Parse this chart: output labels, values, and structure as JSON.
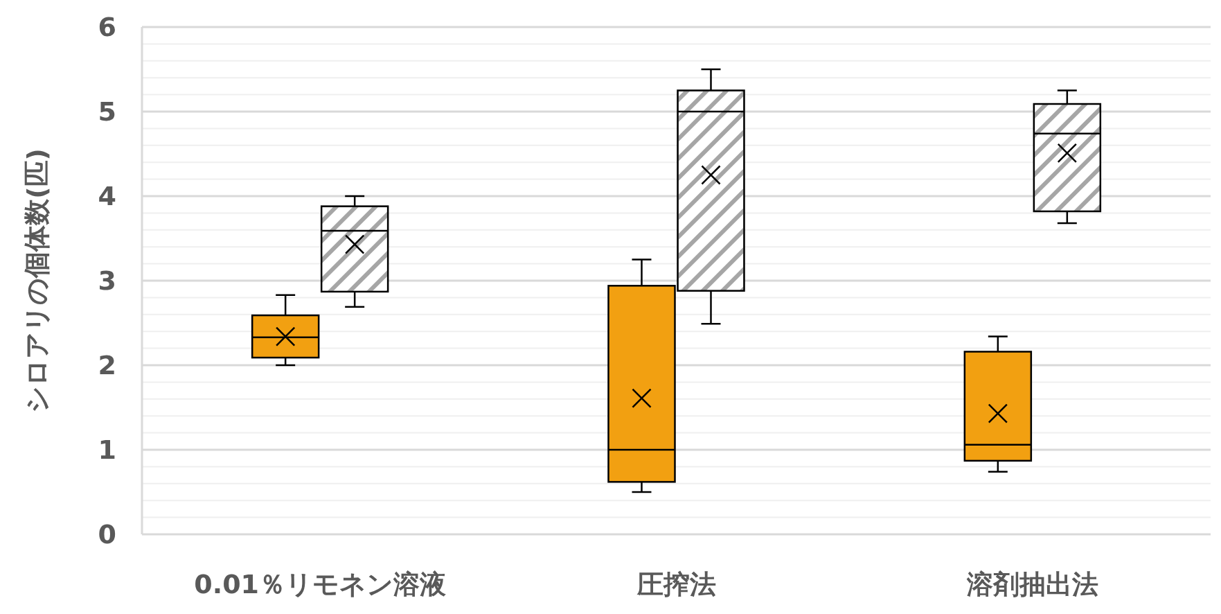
{
  "chart_data": {
    "type": "box",
    "ylabel": "シロアリの個体数(匹)",
    "categories": [
      "0.01％リモネン溶液",
      "圧搾法",
      "溶剤抽出法"
    ],
    "ylim": [
      0,
      6
    ],
    "yticks": [
      0,
      {
        "value": 0.2,
        "label": null
      },
      {
        "value": 0.4,
        "label": null
      },
      {
        "value": 0.6,
        "label": null
      },
      {
        "value": 0.8,
        "label": null
      },
      1,
      {
        "value": 1.2,
        "label": null
      },
      {
        "value": 1.4,
        "label": null
      },
      {
        "value": 1.6,
        "label": null
      },
      {
        "value": 1.8,
        "label": null
      },
      2,
      {
        "value": 2.2,
        "label": null
      },
      {
        "value": 2.4,
        "label": null
      },
      {
        "value": 2.6,
        "label": null
      },
      {
        "value": 2.8,
        "label": null
      },
      3,
      {
        "value": 3.2,
        "label": null
      },
      {
        "value": 3.4,
        "label": null
      },
      {
        "value": 3.6,
        "label": null
      },
      {
        "value": 3.8,
        "label": null
      },
      4,
      {
        "value": 4.2,
        "label": null
      },
      {
        "value": 4.4,
        "label": null
      },
      {
        "value": 4.6,
        "label": null
      },
      {
        "value": 4.8,
        "label": null
      },
      5,
      {
        "value": 5.2,
        "label": null
      },
      {
        "value": 5.4,
        "label": null
      },
      {
        "value": 5.6,
        "label": null
      },
      {
        "value": 5.8,
        "label": null
      },
      6
    ],
    "grid": true,
    "series": [
      {
        "color": "#f2a011",
        "boxes": [
          {
            "low": 2.0,
            "q1": 2.09,
            "median": 2.33,
            "q3": 2.59,
            "high": 2.83,
            "mean": 2.34
          },
          {
            "low": 0.5,
            "q1": 0.62,
            "median": 1.0,
            "q3": 2.94,
            "high": 3.25,
            "mean": 1.61
          },
          {
            "low": 0.74,
            "q1": 0.87,
            "median": 1.06,
            "q3": 2.16,
            "high": 2.34,
            "mean": 1.43
          }
        ]
      },
      {
        "color": "#a6a6a6",
        "boxes": [
          {
            "low": 2.69,
            "q1": 2.87,
            "median": 3.59,
            "q3": 3.88,
            "high": 4.0,
            "mean": 3.43
          },
          {
            "low": 2.49,
            "q1": 2.88,
            "median": 5.0,
            "q3": 5.25,
            "high": 5.5,
            "mean": 4.25
          },
          {
            "low": 3.68,
            "q1": 3.82,
            "median": 4.74,
            "q3": 5.09,
            "high": 5.25,
            "mean": 4.51
          }
        ]
      }
    ]
  }
}
